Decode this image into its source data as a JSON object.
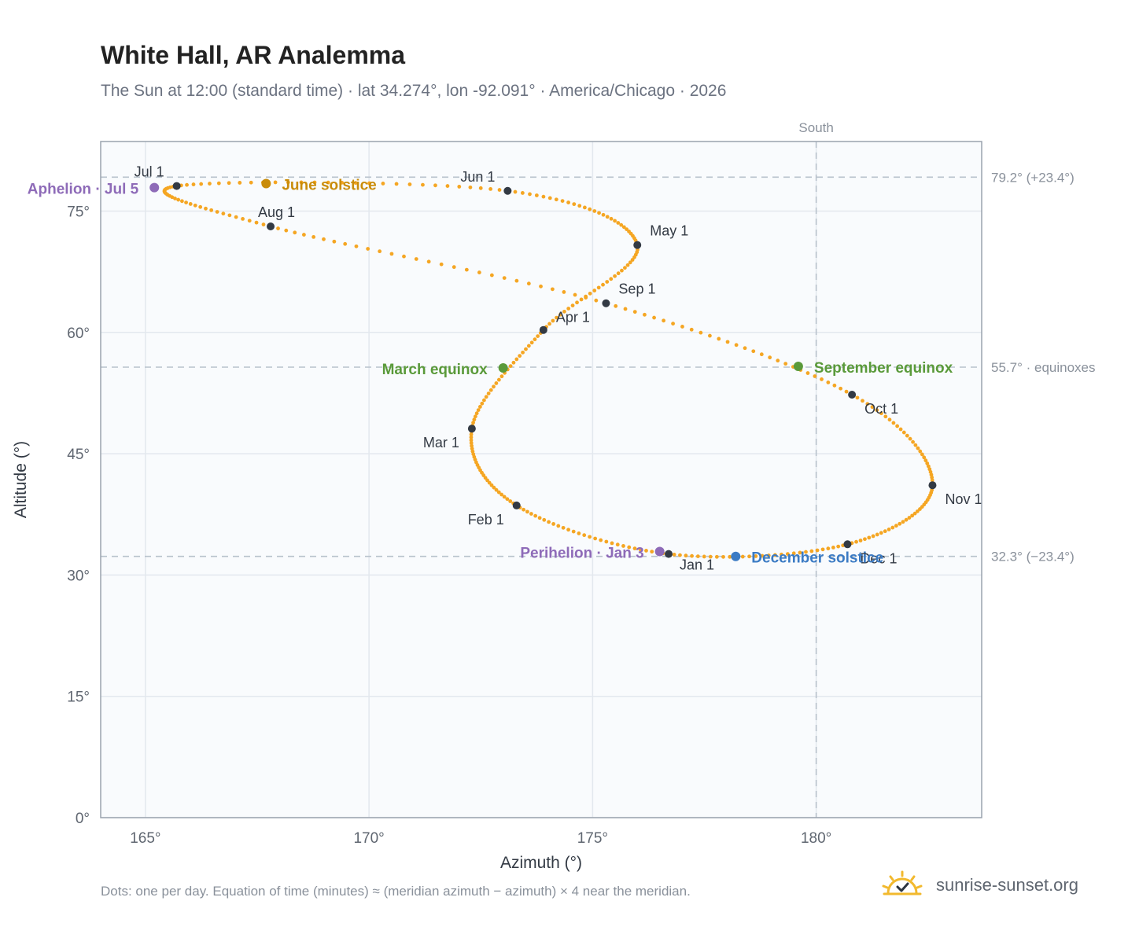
{
  "title": "White Hall, AR Analemma",
  "subtitle": "The Sun at 12:00 (standard time) · lat 34.274°, lon -92.091° · America/Chicago · 2026",
  "footnote": "Dots: one per day. Equation of time (minutes) ≈ (meridian azimuth − azimuth) × 4 near the meridian.",
  "brand": {
    "name": "sunrise-sunset.org",
    "icon": "sun-check-icon"
  },
  "colors": {
    "curve": "#f5a623",
    "month_dot": "#333a44",
    "solstice_june": "#c98c0a",
    "solstice_december": "#3b7bc4",
    "equinox": "#5a9a3a",
    "apsis": "#8e6bb8",
    "guide": "#b8c2cc",
    "plot_bg": "#f9fbfd"
  },
  "chart_data": {
    "type": "scatter",
    "xlabel": "Azimuth (°)",
    "ylabel": "Altitude (°)",
    "xlim": [
      164,
      183.7
    ],
    "ylim": [
      0,
      83.6
    ],
    "x_ticks": [
      165,
      170,
      175,
      180
    ],
    "x_tick_labels": [
      "165°",
      "170°",
      "175°",
      "180°"
    ],
    "y_ticks": [
      0,
      15,
      30,
      45,
      60,
      75
    ],
    "y_tick_labels": [
      "0°",
      "15°",
      "30°",
      "45°",
      "60°",
      "75°"
    ],
    "grid": true,
    "meridian": {
      "x": 180,
      "label": "South"
    },
    "reference_lines": [
      {
        "y": 79.2,
        "label": "79.2° (+23.4°)"
      },
      {
        "y": 55.7,
        "label": "55.7° · equinoxes"
      },
      {
        "y": 32.3,
        "label": "32.3° (−23.4°)"
      }
    ],
    "month_points": [
      {
        "label": "Jan 1",
        "x": 176.7,
        "y": 32.6
      },
      {
        "label": "Feb 1",
        "x": 173.3,
        "y": 38.6
      },
      {
        "label": "Mar 1",
        "x": 172.3,
        "y": 48.1
      },
      {
        "label": "Apr 1",
        "x": 173.9,
        "y": 60.3
      },
      {
        "label": "May 1",
        "x": 176.0,
        "y": 70.8
      },
      {
        "label": "Jun 1",
        "x": 173.1,
        "y": 77.5
      },
      {
        "label": "Jul 1",
        "x": 165.7,
        "y": 78.1
      },
      {
        "label": "Aug 1",
        "x": 167.8,
        "y": 73.1
      },
      {
        "label": "Sep 1",
        "x": 175.3,
        "y": 63.6
      },
      {
        "label": "Oct 1",
        "x": 180.8,
        "y": 52.3
      },
      {
        "label": "Nov 1",
        "x": 182.6,
        "y": 41.1
      },
      {
        "label": "Dec 1",
        "x": 180.7,
        "y": 33.8
      }
    ],
    "events": [
      {
        "label": "June solstice",
        "x": 167.7,
        "y": 78.4,
        "color": "#c98c0a"
      },
      {
        "label": "December solstice",
        "x": 178.2,
        "y": 32.3,
        "color": "#3b7bc4"
      },
      {
        "label": "March equinox",
        "x": 173.0,
        "y": 55.6,
        "color": "#5a9a3a"
      },
      {
        "label": "September equinox",
        "x": 179.6,
        "y": 55.8,
        "color": "#5a9a3a"
      },
      {
        "label": "Aphelion · Jul 5",
        "x": 165.2,
        "y": 77.9,
        "color": "#8e6bb8"
      },
      {
        "label": "Perihelion · Jan 3",
        "x": 176.5,
        "y": 32.9,
        "color": "#8e6bb8"
      }
    ]
  }
}
